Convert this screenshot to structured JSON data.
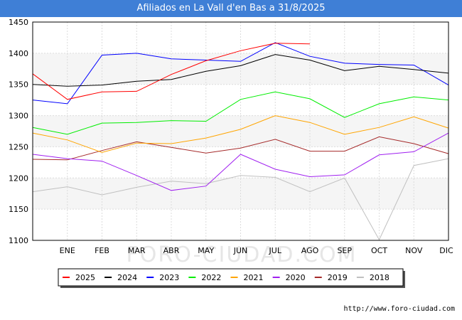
{
  "header": {
    "title": "Afiliados en La Vall d'en Bas a 31/8/2025"
  },
  "watermark": "FORO-CIUDAD.COM",
  "footer": {
    "url": "http://www.foro-ciudad.com"
  },
  "chart_data": {
    "type": "line",
    "title": "Afiliados en La Vall d'en Bas a 31/8/2025",
    "categories": [
      "",
      "ENE",
      "FEB",
      "MAR",
      "ABR",
      "MAY",
      "JUN",
      "JUL",
      "AGO",
      "SEP",
      "OCT",
      "NOV",
      "DIC"
    ],
    "ylim": [
      1100,
      1450
    ],
    "yticks": [
      1100,
      1150,
      1200,
      1250,
      1300,
      1350,
      1400,
      1450
    ],
    "grid": true,
    "legend_position": "bottom",
    "series": [
      {
        "name": "2025",
        "color": "#ff0000",
        "values": [
          1367,
          1326,
          1338,
          1339,
          1366,
          1388,
          1404,
          1416,
          1415,
          null,
          null,
          null,
          null
        ]
      },
      {
        "name": "2024",
        "color": "#000000",
        "values": [
          1350,
          1347,
          1349,
          1355,
          1358,
          1371,
          1380,
          1398,
          1389,
          1372,
          1379,
          1374,
          1368
        ]
      },
      {
        "name": "2023",
        "color": "#0000ff",
        "values": [
          1325,
          1319,
          1397,
          1400,
          1391,
          1389,
          1387,
          1417,
          1395,
          1384,
          1382,
          1381,
          1349
        ]
      },
      {
        "name": "2022",
        "color": "#00ee00",
        "values": [
          1281,
          1270,
          1288,
          1289,
          1292,
          1291,
          1326,
          1338,
          1327,
          1297,
          1319,
          1330,
          1325
        ]
      },
      {
        "name": "2021",
        "color": "#ffa500",
        "values": [
          1272,
          1261,
          1241,
          1256,
          1255,
          1264,
          1278,
          1300,
          1289,
          1270,
          1281,
          1298,
          1280
        ]
      },
      {
        "name": "2020",
        "color": "#a020f0",
        "values": [
          1238,
          1231,
          1227,
          1204,
          1180,
          1187,
          1238,
          1214,
          1202,
          1205,
          1237,
          1242,
          1272
        ]
      },
      {
        "name": "2019",
        "color": "#a52a2a",
        "values": [
          1230,
          1229,
          1244,
          1258,
          1249,
          1240,
          1248,
          1262,
          1243,
          1243,
          1266,
          1255,
          1239
        ]
      },
      {
        "name": "2018",
        "color": "#c0c0c0",
        "values": [
          1178,
          1186,
          1173,
          1185,
          1195,
          1191,
          1204,
          1201,
          1178,
          1200,
          1101,
          1220,
          1231
        ]
      }
    ]
  }
}
